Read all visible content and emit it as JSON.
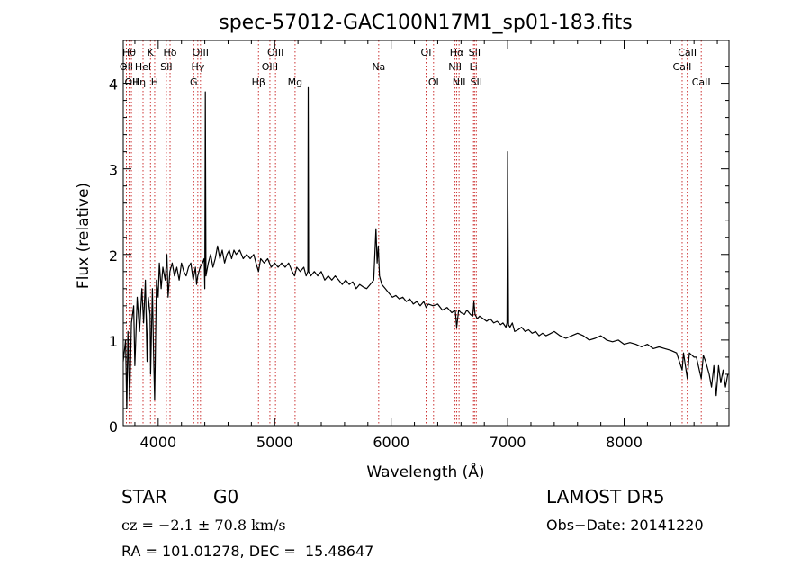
{
  "chart_data": {
    "type": "line",
    "title": "spec-57012-GAC100N17M1_sp01-183.fits",
    "xlabel": "Wavelength (Å)",
    "ylabel": "Flux (relative)",
    "xlim": [
      3700,
      8900
    ],
    "ylim": [
      0,
      4.5
    ],
    "x_ticks": [
      4000,
      5000,
      6000,
      7000,
      8000
    ],
    "y_ticks": [
      0,
      1,
      2,
      3,
      4
    ],
    "grid": false,
    "line_color": "#000000",
    "marker_color": "#cc3333",
    "spectrum": [
      [
        3700,
        0.75
      ],
      [
        3720,
        1.0
      ],
      [
        3730,
        0.2
      ],
      [
        3740,
        1.1
      ],
      [
        3755,
        0.3
      ],
      [
        3770,
        1.2
      ],
      [
        3790,
        1.4
      ],
      [
        3800,
        0.7
      ],
      [
        3820,
        1.5
      ],
      [
        3840,
        1.1
      ],
      [
        3860,
        1.6
      ],
      [
        3875,
        1.2
      ],
      [
        3890,
        1.7
      ],
      [
        3905,
        0.75
      ],
      [
        3915,
        1.5
      ],
      [
        3930,
        1.3
      ],
      [
        3935,
        0.6
      ],
      [
        3950,
        1.6
      ],
      [
        3960,
        0.85
      ],
      [
        3970,
        0.3
      ],
      [
        3985,
        1.7
      ],
      [
        4000,
        1.5
      ],
      [
        4010,
        1.9
      ],
      [
        4025,
        1.6
      ],
      [
        4040,
        1.85
      ],
      [
        4060,
        1.7
      ],
      [
        4075,
        2.0
      ],
      [
        4085,
        1.5
      ],
      [
        4100,
        1.8
      ],
      [
        4120,
        1.9
      ],
      [
        4140,
        1.75
      ],
      [
        4160,
        1.85
      ],
      [
        4180,
        1.7
      ],
      [
        4200,
        1.9
      ],
      [
        4220,
        1.8
      ],
      [
        4240,
        1.75
      ],
      [
        4260,
        1.85
      ],
      [
        4280,
        1.9
      ],
      [
        4300,
        1.7
      ],
      [
        4320,
        1.85
      ],
      [
        4330,
        1.65
      ],
      [
        4340,
        1.75
      ],
      [
        4360,
        1.85
      ],
      [
        4380,
        1.9
      ],
      [
        4395,
        1.95
      ],
      [
        4400,
        1.6
      ],
      [
        4405,
        3.9
      ],
      [
        4410,
        1.75
      ],
      [
        4430,
        1.9
      ],
      [
        4450,
        2.0
      ],
      [
        4470,
        1.85
      ],
      [
        4490,
        1.95
      ],
      [
        4510,
        2.1
      ],
      [
        4530,
        1.95
      ],
      [
        4550,
        2.05
      ],
      [
        4570,
        1.9
      ],
      [
        4590,
        2.0
      ],
      [
        4610,
        2.05
      ],
      [
        4630,
        1.95
      ],
      [
        4650,
        2.05
      ],
      [
        4670,
        2.0
      ],
      [
        4700,
        2.05
      ],
      [
        4730,
        1.95
      ],
      [
        4760,
        2.0
      ],
      [
        4790,
        1.95
      ],
      [
        4820,
        2.0
      ],
      [
        4840,
        1.9
      ],
      [
        4861,
        1.8
      ],
      [
        4880,
        1.95
      ],
      [
        4910,
        1.9
      ],
      [
        4940,
        1.95
      ],
      [
        4970,
        1.85
      ],
      [
        5000,
        1.9
      ],
      [
        5030,
        1.85
      ],
      [
        5060,
        1.9
      ],
      [
        5090,
        1.85
      ],
      [
        5120,
        1.9
      ],
      [
        5150,
        1.8
      ],
      [
        5170,
        1.75
      ],
      [
        5190,
        1.85
      ],
      [
        5220,
        1.8
      ],
      [
        5250,
        1.85
      ],
      [
        5270,
        1.75
      ],
      [
        5285,
        1.8
      ],
      [
        5288,
        3.95
      ],
      [
        5292,
        1.8
      ],
      [
        5310,
        1.75
      ],
      [
        5340,
        1.8
      ],
      [
        5370,
        1.75
      ],
      [
        5400,
        1.8
      ],
      [
        5430,
        1.7
      ],
      [
        5460,
        1.75
      ],
      [
        5490,
        1.7
      ],
      [
        5520,
        1.75
      ],
      [
        5550,
        1.7
      ],
      [
        5580,
        1.65
      ],
      [
        5610,
        1.7
      ],
      [
        5640,
        1.65
      ],
      [
        5670,
        1.68
      ],
      [
        5700,
        1.6
      ],
      [
        5730,
        1.65
      ],
      [
        5760,
        1.62
      ],
      [
        5790,
        1.6
      ],
      [
        5820,
        1.65
      ],
      [
        5850,
        1.7
      ],
      [
        5870,
        2.3
      ],
      [
        5880,
        1.9
      ],
      [
        5890,
        2.1
      ],
      [
        5900,
        1.75
      ],
      [
        5920,
        1.65
      ],
      [
        5950,
        1.6
      ],
      [
        5980,
        1.55
      ],
      [
        6010,
        1.5
      ],
      [
        6040,
        1.52
      ],
      [
        6070,
        1.48
      ],
      [
        6100,
        1.5
      ],
      [
        6130,
        1.45
      ],
      [
        6160,
        1.48
      ],
      [
        6190,
        1.42
      ],
      [
        6220,
        1.45
      ],
      [
        6250,
        1.4
      ],
      [
        6280,
        1.45
      ],
      [
        6300,
        1.38
      ],
      [
        6320,
        1.42
      ],
      [
        6360,
        1.4
      ],
      [
        6400,
        1.42
      ],
      [
        6440,
        1.35
      ],
      [
        6480,
        1.38
      ],
      [
        6520,
        1.32
      ],
      [
        6550,
        1.35
      ],
      [
        6563,
        1.15
      ],
      [
        6580,
        1.35
      ],
      [
        6600,
        1.32
      ],
      [
        6630,
        1.3
      ],
      [
        6650,
        1.35
      ],
      [
        6680,
        1.3
      ],
      [
        6700,
        1.28
      ],
      [
        6710,
        1.45
      ],
      [
        6720,
        1.3
      ],
      [
        6740,
        1.25
      ],
      [
        6760,
        1.28
      ],
      [
        6790,
        1.25
      ],
      [
        6820,
        1.22
      ],
      [
        6850,
        1.25
      ],
      [
        6880,
        1.2
      ],
      [
        6910,
        1.22
      ],
      [
        6940,
        1.18
      ],
      [
        6960,
        1.2
      ],
      [
        6985,
        1.15
      ],
      [
        6995,
        1.2
      ],
      [
        7000,
        3.2
      ],
      [
        7008,
        1.18
      ],
      [
        7020,
        1.15
      ],
      [
        7040,
        1.2
      ],
      [
        7060,
        1.1
      ],
      [
        7090,
        1.12
      ],
      [
        7120,
        1.15
      ],
      [
        7150,
        1.1
      ],
      [
        7180,
        1.12
      ],
      [
        7210,
        1.08
      ],
      [
        7240,
        1.1
      ],
      [
        7270,
        1.05
      ],
      [
        7300,
        1.08
      ],
      [
        7330,
        1.05
      ],
      [
        7360,
        1.07
      ],
      [
        7400,
        1.1
      ],
      [
        7450,
        1.05
      ],
      [
        7500,
        1.02
      ],
      [
        7550,
        1.05
      ],
      [
        7600,
        1.08
      ],
      [
        7650,
        1.05
      ],
      [
        7700,
        1.0
      ],
      [
        7750,
        1.02
      ],
      [
        7800,
        1.05
      ],
      [
        7850,
        1.0
      ],
      [
        7900,
        0.98
      ],
      [
        7950,
        1.0
      ],
      [
        8000,
        0.95
      ],
      [
        8050,
        0.97
      ],
      [
        8100,
        0.95
      ],
      [
        8150,
        0.92
      ],
      [
        8200,
        0.95
      ],
      [
        8250,
        0.9
      ],
      [
        8300,
        0.92
      ],
      [
        8350,
        0.9
      ],
      [
        8400,
        0.88
      ],
      [
        8450,
        0.85
      ],
      [
        8498,
        0.65
      ],
      [
        8510,
        0.85
      ],
      [
        8542,
        0.55
      ],
      [
        8560,
        0.85
      ],
      [
        8600,
        0.8
      ],
      [
        8620,
        0.8
      ],
      [
        8662,
        0.55
      ],
      [
        8680,
        0.82
      ],
      [
        8700,
        0.75
      ],
      [
        8730,
        0.6
      ],
      [
        8750,
        0.45
      ],
      [
        8770,
        0.7
      ],
      [
        8790,
        0.35
      ],
      [
        8810,
        0.7
      ],
      [
        8830,
        0.5
      ],
      [
        8850,
        0.65
      ],
      [
        8870,
        0.45
      ],
      [
        8890,
        0.6
      ]
    ],
    "line_markers": [
      {
        "x": 3727,
        "label": "OII",
        "row": 2
      },
      {
        "x": 3750,
        "label": "Hθ",
        "row": 1
      },
      {
        "x": 3770,
        "label": "OII",
        "row": 3
      },
      {
        "x": 3835,
        "label": "Hη",
        "row": 3
      },
      {
        "x": 3870,
        "label": "HeI",
        "row": 2
      },
      {
        "x": 3934,
        "label": "K",
        "row": 1
      },
      {
        "x": 3970,
        "label": "H",
        "row": 3
      },
      {
        "x": 4070,
        "label": "SII",
        "row": 2
      },
      {
        "x": 4102,
        "label": "Hδ",
        "row": 1
      },
      {
        "x": 4305,
        "label": "G",
        "row": 3
      },
      {
        "x": 4340,
        "label": "Hγ",
        "row": 2
      },
      {
        "x": 4363,
        "label": "OIII",
        "row": 1
      },
      {
        "x": 4861,
        "label": "Hβ",
        "row": 3
      },
      {
        "x": 4959,
        "label": "OIII",
        "row": 2
      },
      {
        "x": 5007,
        "label": "OIII",
        "row": 1
      },
      {
        "x": 5175,
        "label": "Mg",
        "row": 3
      },
      {
        "x": 5893,
        "label": "Na",
        "row": 2
      },
      {
        "x": 6300,
        "label": "OI",
        "row": 1
      },
      {
        "x": 6364,
        "label": "OI",
        "row": 3
      },
      {
        "x": 6548,
        "label": "NII",
        "row": 2
      },
      {
        "x": 6563,
        "label": "Hα",
        "row": 1
      },
      {
        "x": 6583,
        "label": "NII",
        "row": 3
      },
      {
        "x": 6707,
        "label": "Li",
        "row": 2
      },
      {
        "x": 6716,
        "label": "SII",
        "row": 1
      },
      {
        "x": 6731,
        "label": "SII",
        "row": 3
      },
      {
        "x": 8498,
        "label": "CaII",
        "row": 2
      },
      {
        "x": 8542,
        "label": "CaII",
        "row": 1
      },
      {
        "x": 8662,
        "label": "CaII",
        "row": 3
      }
    ]
  },
  "info": {
    "object_class": "STAR",
    "subclass": "G0",
    "survey": "LAMOST DR5",
    "cz_line": "cz = −2.1 ± 70.8 km/s",
    "obs_date": "Obs−Date: 20141220",
    "coords": "RA = 101.01278, DEC =  15.48647"
  }
}
